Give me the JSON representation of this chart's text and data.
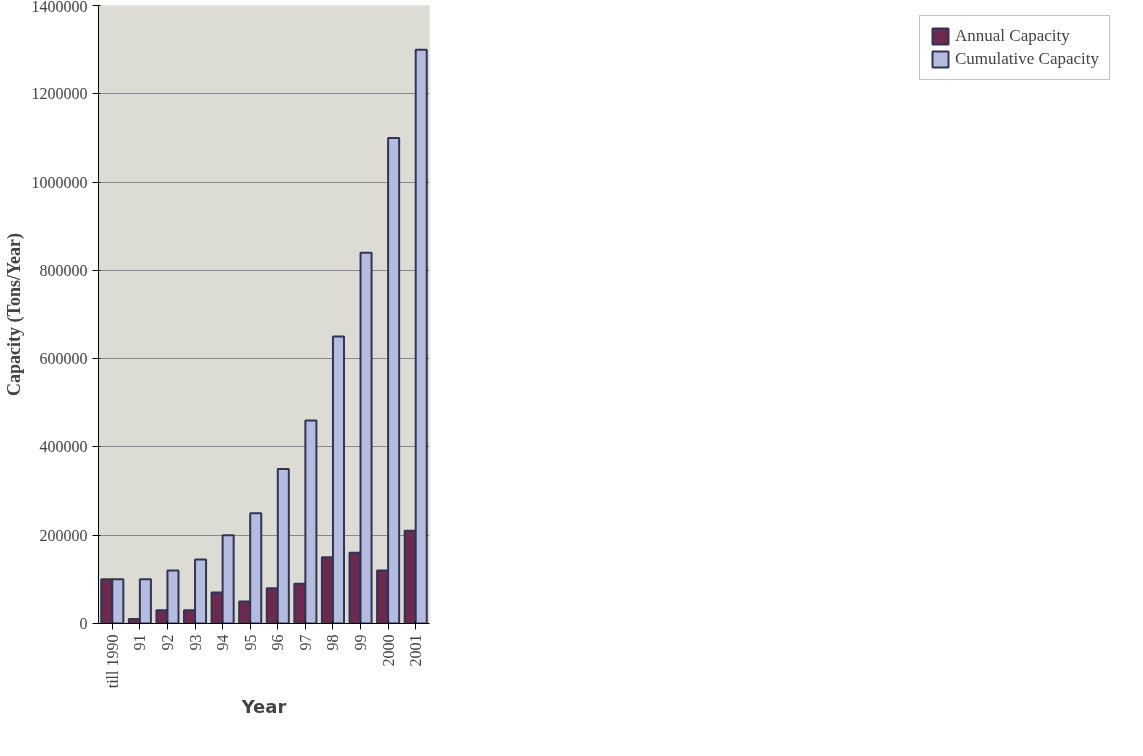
{
  "chart_data": {
    "type": "bar",
    "xlabel": "Year",
    "ylabel": "Capacity (Tons/Year)",
    "categories": [
      "till 1990",
      "91",
      "92",
      "93",
      "94",
      "95",
      "96",
      "97",
      "98",
      "99",
      "2000",
      "2001"
    ],
    "series": [
      {
        "name": "Annual Capacity",
        "color": "#6b2a4e",
        "values": [
          100000,
          10000,
          30000,
          30000,
          70000,
          50000,
          80000,
          90000,
          150000,
          160000,
          120000,
          210000
        ]
      },
      {
        "name": "Cumulative Capacity",
        "color": "#b4bce0",
        "values": [
          100000,
          100000,
          120000,
          145000,
          200000,
          250000,
          350000,
          460000,
          650000,
          840000,
          1100000,
          1300000
        ]
      }
    ],
    "ylim": [
      0,
      1400000
    ],
    "yticks": [
      0,
      200000,
      400000,
      600000,
      800000,
      1000000,
      1200000,
      1400000
    ],
    "grid": "y",
    "legend": "right"
  }
}
